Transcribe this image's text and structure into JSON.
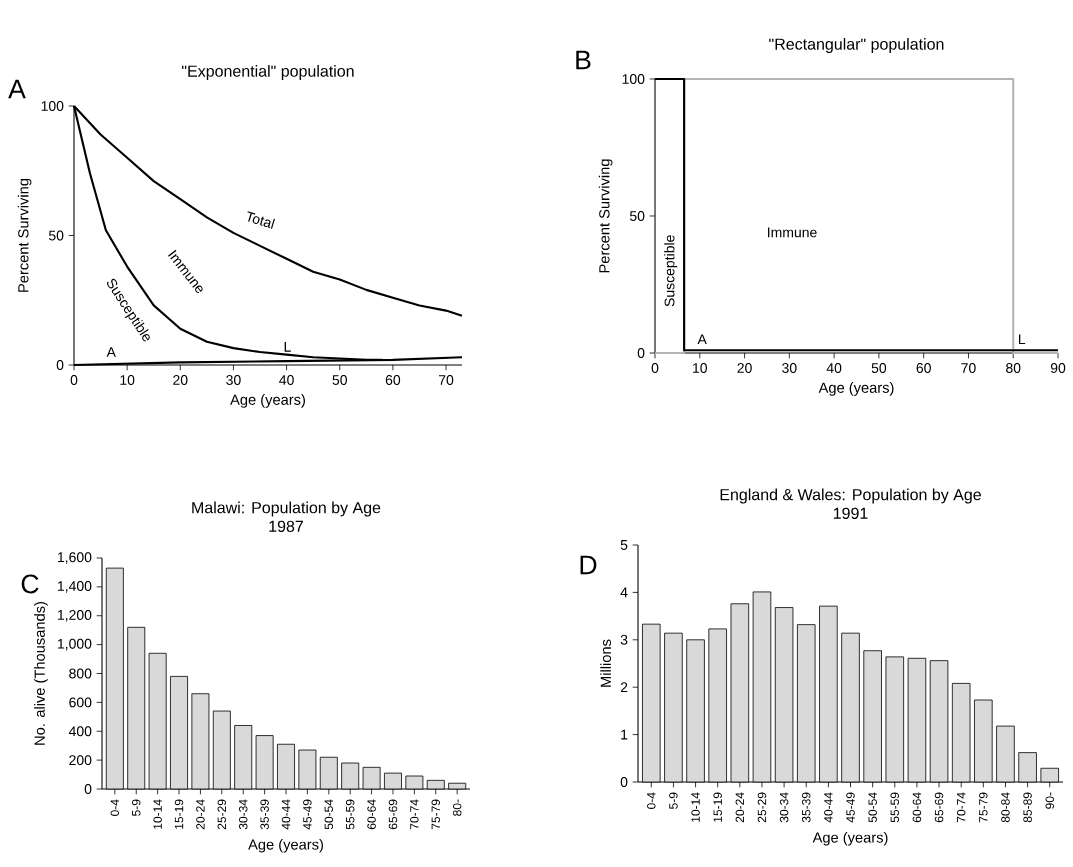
{
  "chart_data": [
    {
      "type": "line",
      "title": "\"Exponential\" population",
      "xlabel": "Age (years)",
      "ylabel": "Percent Surviving",
      "xlim": [
        0,
        73
      ],
      "ylim": [
        0,
        100
      ],
      "xticks": [
        0,
        10,
        20,
        30,
        40,
        50,
        60,
        70
      ],
      "yticks": [
        0,
        50,
        100
      ],
      "series": [
        {
          "color": "#000000",
          "x": [
            0,
            5,
            10,
            15,
            20,
            25,
            30,
            35,
            40,
            45,
            50,
            55,
            60,
            65,
            70,
            73
          ],
          "values": [
            100,
            89,
            80,
            71,
            64,
            57,
            51,
            46,
            41,
            36,
            33,
            29,
            26,
            23,
            21,
            19
          ]
        },
        {
          "color": "#000000",
          "x": [
            0,
            3,
            6,
            10,
            15,
            20,
            25,
            30,
            35,
            40,
            45,
            50,
            55,
            58
          ],
          "values": [
            100,
            74,
            52,
            38,
            23,
            14,
            9,
            6.5,
            5,
            4,
            3,
            2.5,
            2,
            2
          ]
        },
        {
          "color": "#000000",
          "x": [
            0,
            20,
            40,
            60,
            73
          ],
          "values": [
            0,
            1,
            1.5,
            2,
            3
          ]
        }
      ],
      "annotations": [
        "A",
        "Total",
        "Immune",
        "Susceptible",
        "A",
        "L"
      ]
    },
    {
      "type": "line",
      "title": "\"Rectangular\" population",
      "xlabel": "Age (years)",
      "ylabel": "Percent Surviving",
      "xlim": [
        0,
        90
      ],
      "ylim": [
        0,
        100
      ],
      "xticks": [
        0,
        10,
        20,
        30,
        40,
        50,
        60,
        70,
        80,
        90
      ],
      "yticks": [
        0,
        50,
        100
      ],
      "series": [
        {
          "color": "#b4b4b4",
          "x": [
            0,
            6.5,
            6.5,
            80,
            80,
            90
          ],
          "values": [
            0,
            0,
            100,
            100,
            0,
            0
          ]
        },
        {
          "color": "#000000",
          "x": [
            0,
            6.5,
            6.5,
            90
          ],
          "values": [
            100,
            100,
            1,
            1
          ]
        }
      ],
      "annotations": [
        "B",
        "Susceptible",
        "Immune",
        "A",
        "L"
      ]
    },
    {
      "type": "bar",
      "title": "Malawi: Population by Age",
      "subtitle": "1987",
      "xlabel": "Age (years)",
      "ylabel": "No. alive (Thousands)",
      "categories": [
        "0-4",
        "5-9",
        "10-14",
        "15-19",
        "20-24",
        "25-29",
        "30-34",
        "35-39",
        "40-44",
        "45-49",
        "50-54",
        "55-59",
        "60-64",
        "65-69",
        "70-74",
        "75-79",
        "80-"
      ],
      "values": [
        1530,
        1120,
        940,
        780,
        660,
        540,
        440,
        370,
        310,
        270,
        220,
        180,
        150,
        110,
        90,
        60,
        40
      ],
      "color": "#d9d9d9",
      "ylim": [
        0,
        1600
      ],
      "yticks": [
        0,
        200,
        400,
        600,
        800,
        {
          "value": 1000,
          "label": "1,000"
        },
        {
          "value": 1200,
          "label": "1,200"
        },
        {
          "value": 1400,
          "label": "1,400"
        },
        {
          "value": 1600,
          "label": "1,600"
        }
      ],
      "annotations": [
        "C"
      ]
    },
    {
      "type": "bar",
      "title": "England & Wales: Population by Age",
      "subtitle": "1991",
      "xlabel": "Age (years)",
      "ylabel": "Millions",
      "categories": [
        "0-4",
        "5-9",
        "10-14",
        "15-19",
        "20-24",
        "25-29",
        "30-34",
        "35-39",
        "40-44",
        "45-49",
        "50-54",
        "55-59",
        "60-64",
        "65-69",
        "70-74",
        "75-79",
        "80-84",
        "85-89",
        "90-"
      ],
      "values": [
        3.33,
        3.14,
        3.0,
        3.23,
        3.76,
        4.01,
        3.68,
        3.32,
        3.71,
        3.14,
        2.77,
        2.64,
        2.61,
        2.56,
        2.08,
        1.73,
        1.18,
        0.62,
        0.29
      ],
      "color": "#d9d9d9",
      "ylim": [
        0,
        5
      ],
      "yticks": [
        0,
        1,
        2,
        3,
        4,
        5
      ],
      "annotations": [
        "D"
      ]
    }
  ]
}
